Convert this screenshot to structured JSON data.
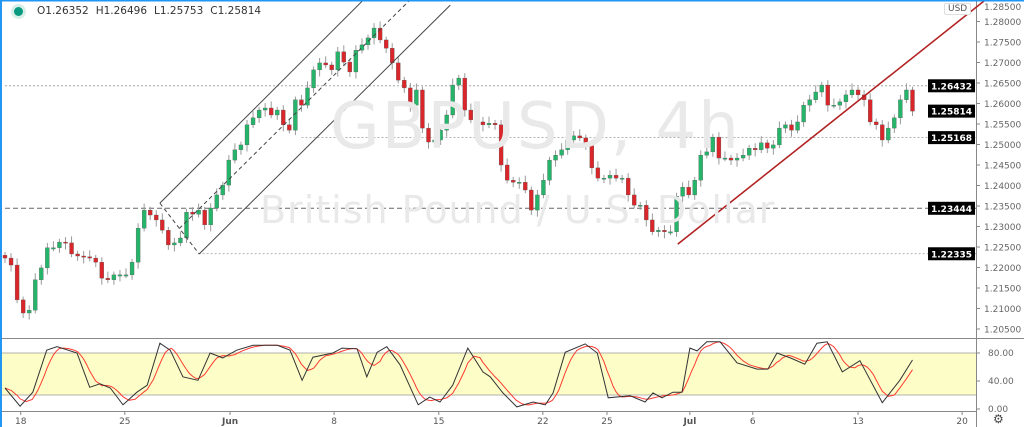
{
  "legend": {
    "open": "O1.26352",
    "high": "H1.26496",
    "low": "L1.25753",
    "close": "C1.25814"
  },
  "watermark": {
    "symbol": "GBPUSD, 4h",
    "description": "British Pound / U.S. Dollar"
  },
  "currency_label": "USD",
  "colors": {
    "up": "#26b36a",
    "down": "#d8262b",
    "wick": "#9a9a9a",
    "trendline": "#b22222",
    "channel": "#444444",
    "band": "#fdfdc8",
    "stoch_k": "#333333",
    "stoch_d": "#ff3b30",
    "accent": "#2196f3"
  },
  "icons": {
    "legend": "status-dot-icon",
    "settings": "gear-icon"
  },
  "chart_data": [
    {
      "type": "candlestick",
      "title": "",
      "y_axis": {
        "min": 1.203,
        "max": 1.285,
        "ticks": [
          "1.28500",
          "1.28000",
          "1.27500",
          "1.27000",
          "1.26500",
          "1.26000",
          "1.25500",
          "1.25000",
          "1.24500",
          "1.24000",
          "1.23500",
          "1.23000",
          "1.22500",
          "1.22000",
          "1.21500",
          "1.21000",
          "1.20500"
        ]
      },
      "x_axis": {
        "ticks": [
          {
            "label": "18",
            "bar": 2.6
          },
          {
            "label": "25",
            "bar": 19.8
          },
          {
            "label": "Jun",
            "bar": 37.2
          },
          {
            "label": "8",
            "bar": 54.4
          },
          {
            "label": "15",
            "bar": 71.7
          },
          {
            "label": "22",
            "bar": 88.9
          },
          {
            "label": "25",
            "bar": 99.5
          },
          {
            "label": "Jul",
            "bar": 113.2
          },
          {
            "label": "6",
            "bar": 123.6
          },
          {
            "label": "13",
            "bar": 141
          },
          {
            "label": "20",
            "bar": 158.2
          }
        ]
      },
      "first_open": 1.223,
      "closes": [
        1.2223,
        1.2206,
        1.2121,
        1.2089,
        1.2096,
        1.217,
        1.2199,
        1.2248,
        1.2248,
        1.2262,
        1.226,
        1.2233,
        1.2228,
        1.2226,
        1.2223,
        1.2213,
        1.2174,
        1.217,
        1.2182,
        1.2182,
        1.2182,
        1.2213,
        1.2296,
        1.234,
        1.2328,
        1.2316,
        1.2291,
        1.2255,
        1.226,
        1.2272,
        1.2335,
        1.233,
        1.234,
        1.2304,
        1.2345,
        1.2377,
        1.2401,
        1.2462,
        1.2487,
        1.2499,
        1.2548,
        1.2565,
        1.2584,
        1.2589,
        1.2572,
        1.2584,
        1.2548,
        1.2535,
        1.2609,
        1.2596,
        1.2638,
        1.2682,
        1.2699,
        1.2694,
        1.2682,
        1.2726,
        1.2701,
        1.2677,
        1.273,
        1.2743,
        1.276,
        1.2784,
        1.2755,
        1.2735,
        1.2699,
        1.2657,
        1.2638,
        1.2596,
        1.2633,
        1.254,
        1.2506,
        1.2511,
        1.2535,
        1.2572,
        1.2645,
        1.2662,
        1.2584,
        1.256,
        1.2555,
        1.2548,
        1.2552,
        1.2548,
        1.245,
        1.2413,
        1.2408,
        1.2408,
        1.2389,
        1.234,
        1.2377,
        1.2413,
        1.2462,
        1.2474,
        1.2487,
        1.2511,
        1.2521,
        1.2516,
        1.2499,
        1.2443,
        1.2418,
        1.2418,
        1.2425,
        1.2418,
        1.2418,
        1.2377,
        1.2352,
        1.2352,
        1.2316,
        1.2287,
        1.2291,
        1.2287,
        1.2287,
        1.2374,
        1.2396,
        1.2377,
        1.2413,
        1.2474,
        1.2482,
        1.2518,
        1.2467,
        1.2467,
        1.2462,
        1.2467,
        1.2474,
        1.2491,
        1.2487,
        1.2504,
        1.2491,
        1.2499,
        1.254,
        1.2548,
        1.2535,
        1.2555,
        1.2596,
        1.2609,
        1.2628,
        1.2645,
        1.2596,
        1.2596,
        1.2604,
        1.2621,
        1.2633,
        1.2621,
        1.2609,
        1.2555,
        1.2548,
        1.2511,
        1.254,
        1.2565,
        1.2609,
        1.2633,
        1.25814
      ],
      "price_labels": [
        {
          "label": "1.26432",
          "value": 1.26432,
          "line": "dotted",
          "from_bar": 0
        },
        {
          "label": "1.25814",
          "value": 1.25814,
          "line": "none",
          "from_bar": 150
        },
        {
          "label": "1.25168",
          "value": 1.25168,
          "line": "dotted",
          "from_bar": 49
        },
        {
          "label": "1.23444",
          "value": 1.23444,
          "line": "dashed",
          "from_bar": 0
        },
        {
          "label": "1.22335",
          "value": 1.22335,
          "line": "dotted",
          "from_bar": 32
        }
      ],
      "drawings": [
        {
          "name": "channel-upper-line",
          "kind": "solid",
          "color": "channel",
          "from": [
            25.6,
            1.2357
          ],
          "to": [
            59.2,
            1.2852
          ]
        },
        {
          "name": "channel-lower-line",
          "kind": "solid",
          "color": "channel",
          "from": [
            32.1,
            1.2233
          ],
          "to": [
            73.6,
            1.284
          ]
        },
        {
          "name": "channel-middle-line",
          "kind": "dashed",
          "color": "channel",
          "from": [
            28.8,
            1.2295
          ],
          "to": [
            66.9,
            1.2852
          ]
        },
        {
          "name": "channel-base-line",
          "kind": "dashed",
          "color": "channel",
          "from": [
            25.6,
            1.2357
          ],
          "to": [
            32.1,
            1.2233
          ]
        },
        {
          "name": "uptrend-line",
          "kind": "solid",
          "color": "trendline",
          "from": [
            111.2,
            1.2257
          ],
          "to": [
            162,
            1.2852
          ]
        }
      ]
    },
    {
      "type": "line",
      "title": "",
      "y_axis": {
        "min": 0,
        "max": 100,
        "ticks": [
          "80.00",
          "40.00",
          "0.00"
        ],
        "band": [
          20,
          80
        ]
      },
      "series": [
        {
          "points": [
            [
              0,
              30
            ],
            [
              2.5,
              4
            ],
            [
              4.6,
              24
            ],
            [
              6.9,
              84
            ],
            [
              8.6,
              89
            ],
            [
              11.9,
              80
            ],
            [
              14,
              31
            ],
            [
              15.7,
              36
            ],
            [
              17.4,
              30
            ],
            [
              19.5,
              6
            ],
            [
              21.8,
              24
            ],
            [
              23.5,
              34
            ],
            [
              25.6,
              94
            ],
            [
              27.3,
              84
            ],
            [
              29.4,
              46
            ],
            [
              31.9,
              41
            ],
            [
              33.9,
              80
            ],
            [
              36,
              73
            ],
            [
              38.3,
              84
            ],
            [
              41,
              91
            ],
            [
              45,
              91
            ],
            [
              47.1,
              84
            ],
            [
              49.1,
              41
            ],
            [
              50.9,
              74
            ],
            [
              54.2,
              80
            ],
            [
              55.7,
              87
            ],
            [
              58.2,
              86
            ],
            [
              59.8,
              46
            ],
            [
              61.5,
              81
            ],
            [
              63.1,
              89
            ],
            [
              65.3,
              63
            ],
            [
              68.3,
              6
            ],
            [
              70.2,
              17
            ],
            [
              71.9,
              10
            ],
            [
              74,
              34
            ],
            [
              76.5,
              87
            ],
            [
              79,
              53
            ],
            [
              80.2,
              46
            ],
            [
              82.3,
              23
            ],
            [
              84.6,
              3
            ],
            [
              87.3,
              10
            ],
            [
              89.3,
              6
            ],
            [
              90.6,
              23
            ],
            [
              92.6,
              81
            ],
            [
              95.9,
              93
            ],
            [
              97.9,
              80
            ],
            [
              99.7,
              16
            ],
            [
              103.3,
              19
            ],
            [
              105.8,
              10
            ],
            [
              107.1,
              23
            ],
            [
              108.6,
              16
            ],
            [
              110.4,
              24
            ],
            [
              111.9,
              24
            ],
            [
              113.2,
              87
            ],
            [
              114.4,
              83
            ],
            [
              116,
              96
            ],
            [
              118.2,
              96
            ],
            [
              121,
              66
            ],
            [
              124.3,
              57
            ],
            [
              126.1,
              57
            ],
            [
              127.6,
              80
            ],
            [
              129.8,
              73
            ],
            [
              132.2,
              64
            ],
            [
              134.2,
              94
            ],
            [
              135.9,
              96
            ],
            [
              138.4,
              53
            ],
            [
              141.3,
              69
            ],
            [
              145,
              9
            ],
            [
              147.9,
              41
            ],
            [
              150,
              70
            ]
          ]
        }
      ]
    }
  ]
}
